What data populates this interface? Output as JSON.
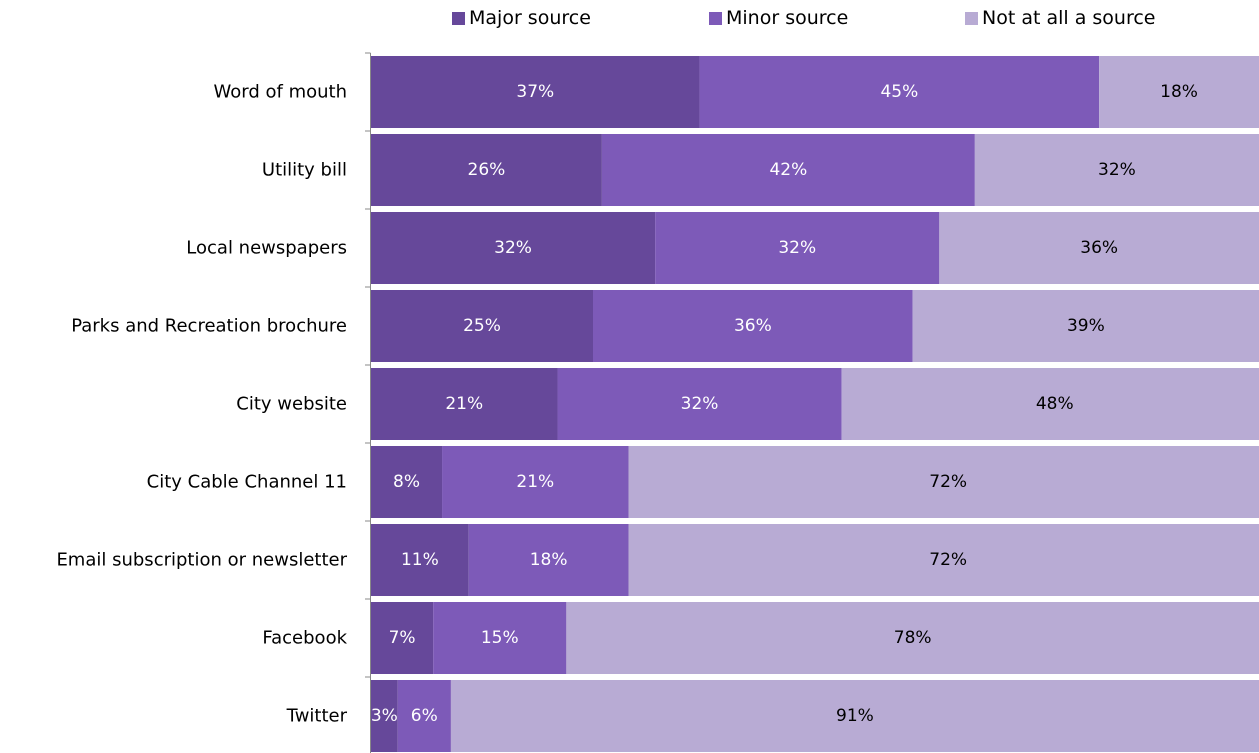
{
  "chart_data": {
    "type": "bar",
    "orientation": "horizontal",
    "stacked": true,
    "categories": [
      "Word of mouth",
      "Utility bill",
      "Local newspapers",
      "Parks and Recreation brochure",
      "City website",
      "City Cable Channel 11",
      "Email subscription or newsletter",
      "Facebook",
      "Twitter"
    ],
    "series": [
      {
        "name": "Major source",
        "color": "#66489a",
        "label_color": "#ffffff",
        "values": [
          37,
          26,
          32,
          25,
          21,
          8,
          11,
          7,
          3
        ],
        "labels": [
          "37%",
          "26%",
          "32%",
          "25%",
          "21%",
          "8%",
          "11%",
          "7%",
          "3%"
        ]
      },
      {
        "name": "Minor source",
        "color": "#7d5ab8",
        "label_color": "#ffffff",
        "values": [
          45,
          42,
          32,
          36,
          32,
          21,
          18,
          15,
          6
        ],
        "labels": [
          "45%",
          "42%",
          "32%",
          "36%",
          "32%",
          "21%",
          "18%",
          "15%",
          "6%"
        ]
      },
      {
        "name": "Not at all a source",
        "color": "#b8abd4",
        "label_color": "#000000",
        "values": [
          18,
          32,
          36,
          39,
          48,
          72,
          72,
          78,
          91
        ],
        "labels": [
          "18%",
          "32%",
          "36%",
          "39%",
          "48%",
          "72%",
          "72%",
          "78%",
          "91%"
        ]
      }
    ],
    "xlim": [
      0,
      100
    ],
    "legend_position": "top",
    "grid": false
  }
}
